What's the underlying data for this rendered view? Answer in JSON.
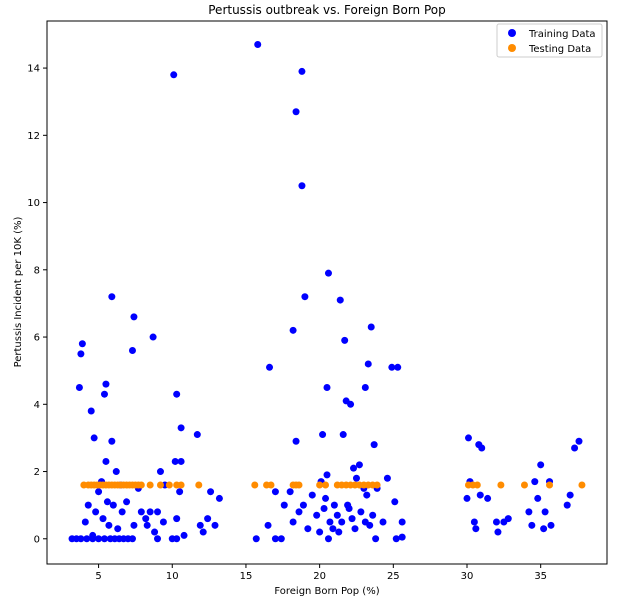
{
  "chart_data": {
    "type": "scatter",
    "title": "Pertussis outbreak vs. Foreign Born Pop",
    "xlabel": "Foreign Born Pop (%)",
    "ylabel": "Pertussis Incident per 10K (%)",
    "xlim": [
      1.5,
      39.5
    ],
    "ylim": [
      -0.75,
      15.4
    ],
    "xticks": [
      5,
      10,
      15,
      20,
      25,
      30,
      35
    ],
    "yticks": [
      0,
      2,
      4,
      6,
      8,
      10,
      12,
      14
    ],
    "grid": false,
    "legend_position": "top-right",
    "series": [
      {
        "name": "Training Data",
        "color": "#0000ff",
        "points": [
          [
            3.2,
            0
          ],
          [
            3.5,
            0
          ],
          [
            3.8,
            0
          ],
          [
            4.2,
            0
          ],
          [
            4.6,
            0
          ],
          [
            5.0,
            0
          ],
          [
            5.4,
            0
          ],
          [
            5.8,
            0
          ],
          [
            6.1,
            0
          ],
          [
            6.4,
            0
          ],
          [
            6.7,
            0
          ],
          [
            7.0,
            0
          ],
          [
            7.3,
            0
          ],
          [
            9.0,
            0
          ],
          [
            10.0,
            0
          ],
          [
            10.3,
            0
          ],
          [
            15.7,
            0
          ],
          [
            17.0,
            0
          ],
          [
            17.4,
            0
          ],
          [
            20.6,
            0
          ],
          [
            23.8,
            0
          ],
          [
            25.2,
            0
          ],
          [
            25.6,
            0.05
          ],
          [
            3.7,
            4.5
          ],
          [
            3.8,
            5.5
          ],
          [
            3.9,
            5.8
          ],
          [
            4.5,
            3.8
          ],
          [
            4.7,
            3.0
          ],
          [
            5.4,
            4.3
          ],
          [
            5.5,
            4.6
          ],
          [
            5.9,
            2.9
          ],
          [
            5.9,
            7.2
          ],
          [
            7.3,
            5.6
          ],
          [
            7.4,
            6.6
          ],
          [
            8.7,
            6.0
          ],
          [
            10.1,
            13.8
          ],
          [
            10.3,
            4.3
          ],
          [
            10.6,
            3.3
          ],
          [
            10.2,
            2.3
          ],
          [
            10.6,
            2.3
          ],
          [
            11.7,
            3.1
          ],
          [
            15.8,
            14.7
          ],
          [
            16.6,
            5.1
          ],
          [
            18.2,
            6.2
          ],
          [
            18.4,
            12.7
          ],
          [
            18.8,
            13.9
          ],
          [
            18.8,
            10.5
          ],
          [
            19.0,
            7.2
          ],
          [
            20.2,
            3.1
          ],
          [
            20.5,
            4.5
          ],
          [
            20.6,
            7.9
          ],
          [
            21.4,
            7.1
          ],
          [
            21.7,
            5.9
          ],
          [
            21.8,
            4.1
          ],
          [
            22.1,
            4.0
          ],
          [
            23.1,
            4.5
          ],
          [
            23.3,
            5.2
          ],
          [
            23.5,
            6.3
          ],
          [
            23.7,
            2.8
          ],
          [
            24.9,
            5.1
          ],
          [
            25.3,
            5.1
          ],
          [
            30.1,
            3.0
          ],
          [
            30.8,
            2.8
          ],
          [
            31.0,
            2.7
          ],
          [
            35.0,
            2.2
          ],
          [
            37.3,
            2.7
          ],
          [
            37.6,
            2.9
          ],
          [
            4.1,
            0.5
          ],
          [
            4.3,
            1.0
          ],
          [
            4.6,
            0.1
          ],
          [
            4.8,
            0.8
          ],
          [
            5.0,
            1.4
          ],
          [
            5.2,
            1.7
          ],
          [
            5.3,
            0.6
          ],
          [
            5.5,
            2.3
          ],
          [
            5.6,
            1.1
          ],
          [
            5.7,
            0.4
          ],
          [
            6.0,
            1.0
          ],
          [
            6.2,
            2.0
          ],
          [
            6.3,
            0.3
          ],
          [
            6.5,
            1.6
          ],
          [
            6.6,
            0.8
          ],
          [
            6.9,
            1.1
          ],
          [
            7.4,
            0.4
          ],
          [
            7.7,
            1.5
          ],
          [
            7.9,
            0.8
          ],
          [
            8.2,
            0.6
          ],
          [
            8.3,
            0.4
          ],
          [
            8.5,
            0.8
          ],
          [
            8.8,
            0.2
          ],
          [
            9.0,
            0.8
          ],
          [
            9.2,
            2.0
          ],
          [
            9.4,
            0.5
          ],
          [
            9.5,
            1.6
          ],
          [
            10.3,
            0.6
          ],
          [
            10.5,
            1.4
          ],
          [
            10.8,
            0.1
          ],
          [
            11.9,
            0.4
          ],
          [
            12.1,
            0.2
          ],
          [
            12.4,
            0.6
          ],
          [
            12.6,
            1.4
          ],
          [
            12.9,
            0.4
          ],
          [
            13.2,
            1.2
          ],
          [
            16.5,
            0.4
          ],
          [
            17.0,
            1.4
          ],
          [
            17.6,
            1.0
          ],
          [
            18.0,
            1.4
          ],
          [
            18.2,
            0.5
          ],
          [
            18.4,
            2.9
          ],
          [
            18.6,
            0.8
          ],
          [
            18.9,
            1.0
          ],
          [
            19.2,
            0.3
          ],
          [
            19.5,
            1.3
          ],
          [
            19.8,
            0.7
          ],
          [
            20.0,
            0.2
          ],
          [
            20.1,
            1.7
          ],
          [
            20.3,
            0.9
          ],
          [
            20.4,
            1.2
          ],
          [
            20.5,
            1.9
          ],
          [
            20.7,
            0.5
          ],
          [
            20.9,
            0.3
          ],
          [
            21.0,
            1.0
          ],
          [
            21.2,
            0.7
          ],
          [
            21.3,
            0.2
          ],
          [
            21.5,
            0.5
          ],
          [
            21.6,
            3.1
          ],
          [
            21.9,
            1.0
          ],
          [
            22.0,
            0.9
          ],
          [
            22.2,
            0.6
          ],
          [
            22.3,
            2.1
          ],
          [
            22.4,
            0.3
          ],
          [
            22.5,
            1.8
          ],
          [
            22.7,
            2.2
          ],
          [
            22.8,
            0.8
          ],
          [
            23.0,
            1.5
          ],
          [
            23.1,
            0.5
          ],
          [
            23.2,
            1.3
          ],
          [
            23.4,
            0.4
          ],
          [
            23.6,
            0.7
          ],
          [
            23.9,
            1.5
          ],
          [
            24.3,
            0.5
          ],
          [
            24.6,
            1.8
          ],
          [
            25.1,
            1.1
          ],
          [
            25.6,
            0.5
          ],
          [
            30.0,
            1.2
          ],
          [
            30.2,
            1.7
          ],
          [
            30.5,
            0.5
          ],
          [
            30.6,
            0.3
          ],
          [
            30.9,
            1.3
          ],
          [
            31.4,
            1.2
          ],
          [
            32.0,
            0.5
          ],
          [
            32.1,
            0.2
          ],
          [
            32.5,
            0.5
          ],
          [
            32.8,
            0.6
          ],
          [
            34.2,
            0.8
          ],
          [
            34.4,
            0.4
          ],
          [
            34.6,
            1.7
          ],
          [
            34.8,
            1.2
          ],
          [
            35.2,
            0.3
          ],
          [
            35.3,
            0.8
          ],
          [
            35.6,
            1.7
          ],
          [
            35.7,
            0.4
          ],
          [
            36.8,
            1.0
          ],
          [
            37.0,
            1.3
          ]
        ]
      },
      {
        "name": "Testing Data",
        "color": "#ff8c00",
        "points": [
          [
            4.0,
            1.6
          ],
          [
            4.3,
            1.6
          ],
          [
            4.5,
            1.6
          ],
          [
            4.7,
            1.6
          ],
          [
            4.9,
            1.6
          ],
          [
            5.1,
            1.6
          ],
          [
            5.3,
            1.6
          ],
          [
            5.5,
            1.6
          ],
          [
            5.7,
            1.6
          ],
          [
            5.9,
            1.6
          ],
          [
            6.1,
            1.6
          ],
          [
            6.3,
            1.6
          ],
          [
            6.5,
            1.6
          ],
          [
            6.7,
            1.6
          ],
          [
            6.9,
            1.6
          ],
          [
            7.1,
            1.6
          ],
          [
            7.3,
            1.6
          ],
          [
            7.5,
            1.6
          ],
          [
            7.7,
            1.6
          ],
          [
            7.9,
            1.6
          ],
          [
            8.5,
            1.6
          ],
          [
            9.2,
            1.6
          ],
          [
            9.8,
            1.6
          ],
          [
            10.3,
            1.6
          ],
          [
            10.6,
            1.6
          ],
          [
            11.8,
            1.6
          ],
          [
            15.6,
            1.6
          ],
          [
            16.4,
            1.6
          ],
          [
            16.7,
            1.6
          ],
          [
            18.2,
            1.6
          ],
          [
            18.4,
            1.6
          ],
          [
            18.6,
            1.6
          ],
          [
            20.0,
            1.6
          ],
          [
            20.4,
            1.6
          ],
          [
            21.2,
            1.6
          ],
          [
            21.5,
            1.6
          ],
          [
            21.8,
            1.6
          ],
          [
            22.1,
            1.6
          ],
          [
            22.4,
            1.6
          ],
          [
            22.7,
            1.6
          ],
          [
            23.0,
            1.6
          ],
          [
            23.3,
            1.6
          ],
          [
            23.6,
            1.6
          ],
          [
            23.9,
            1.6
          ],
          [
            30.1,
            1.6
          ],
          [
            30.4,
            1.6
          ],
          [
            30.7,
            1.6
          ],
          [
            32.3,
            1.6
          ],
          [
            33.9,
            1.6
          ],
          [
            35.6,
            1.6
          ],
          [
            37.8,
            1.6
          ]
        ]
      }
    ]
  }
}
